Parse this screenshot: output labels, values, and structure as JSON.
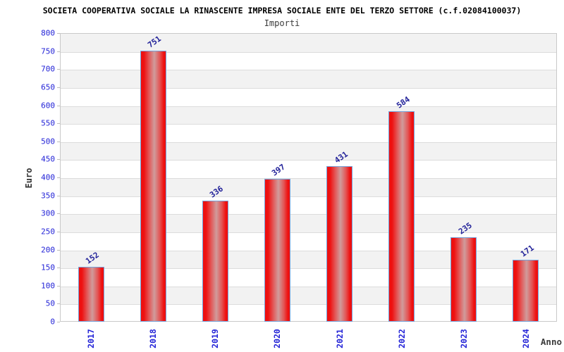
{
  "title": "SOCIETA COOPERATIVA SOCIALE LA RINASCENTE IMPRESA SOCIALE ENTE DEL TERZO SETTORE (c.f.02084100037)",
  "subtitle": "Importi",
  "chart_data": {
    "type": "bar",
    "title": "Importi",
    "categories": [
      "2017",
      "2018",
      "2019",
      "2020",
      "2021",
      "2022",
      "2023",
      "2024"
    ],
    "values": [
      152,
      751,
      336,
      397,
      431,
      584,
      235,
      171
    ],
    "xlabel": "Anno",
    "ylabel": "Euro",
    "ylim": [
      0,
      800
    ],
    "ytick_step": 50,
    "ytick_labels": [
      "0",
      "50",
      "100",
      "150",
      "200",
      "250",
      "300",
      "350",
      "400",
      "450",
      "500",
      "550",
      "600",
      "650",
      "700",
      "750",
      "800"
    ],
    "grid": true,
    "legend_position": "none",
    "band_colors": [
      "#ffffff",
      "#f2f2f2"
    ],
    "bar_fill_color": "#ee1111",
    "bar_highlight_color": "#d09c9c",
    "bar_border_color": "#75a3db",
    "tick_label_color": "#2323d7",
    "value_label_color": "#212199",
    "title_color": "#000000",
    "subtitle_color": "#3c3c3c"
  }
}
